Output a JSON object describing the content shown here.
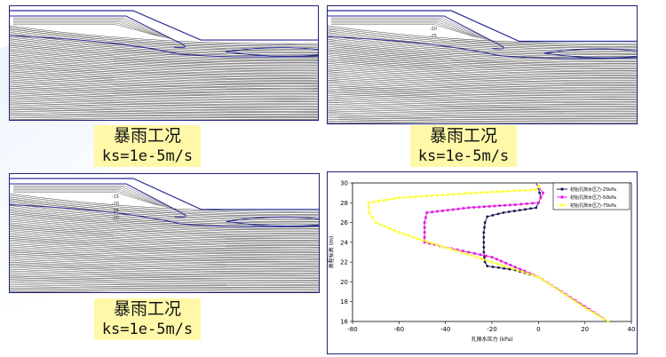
{
  "colors": {
    "boundary": "#2a2a9a",
    "contour": "#222222",
    "caption_bg": "#fff8a8",
    "series_25": "#141450",
    "series_50": "#e020e0",
    "series_75": "#ffff33"
  },
  "panels": [
    {
      "caption": "暴雨工况",
      "ks": "ks=1e-5m/s",
      "labels": []
    },
    {
      "caption": "暴雨工况",
      "ks": "ks=1e-5m/s",
      "labels": [
        "-20",
        "-25"
      ]
    },
    {
      "caption": "暴雨工况",
      "ks": "ks=1e-5m/s",
      "labels": [
        "-15",
        "-20",
        "-25",
        "-30"
      ]
    }
  ],
  "chart_data": {
    "type": "line",
    "xlabel": "孔隙水压力 (kPa)",
    "ylabel": "高程标高 (m)",
    "xlim": [
      -80,
      40
    ],
    "ylim": [
      16,
      30
    ],
    "xticks": [
      -80,
      -60,
      -40,
      -20,
      0,
      20,
      40
    ],
    "yticks": [
      16,
      18,
      20,
      22,
      24,
      26,
      28,
      30
    ],
    "grid": false,
    "legend": "top-right",
    "series": [
      {
        "name": "初始孔隙水压力-25kPa",
        "color": "#141450",
        "points": [
          [
            30,
            16
          ],
          [
            20,
            17.5
          ],
          [
            10,
            19
          ],
          [
            0,
            20.5
          ],
          [
            -10,
            21.2
          ],
          [
            -22,
            21.6
          ],
          [
            -23,
            22
          ],
          [
            -23.5,
            23
          ],
          [
            -23.5,
            24
          ],
          [
            -23.5,
            25
          ],
          [
            -23,
            26
          ],
          [
            -22,
            26.6
          ],
          [
            -15,
            27
          ],
          [
            -1,
            27.5
          ],
          [
            1,
            28.5
          ],
          [
            0,
            29.5
          ],
          [
            -1,
            30
          ]
        ]
      },
      {
        "name": "初始孔隙水压力-50kPa",
        "color": "#e020e0",
        "points": [
          [
            30,
            16
          ],
          [
            20,
            17.5
          ],
          [
            10,
            19
          ],
          [
            0,
            20.5
          ],
          [
            -10,
            21.5
          ],
          [
            -20,
            22.5
          ],
          [
            -30,
            23
          ],
          [
            -40,
            23.5
          ],
          [
            -49,
            24
          ],
          [
            -49,
            25
          ],
          [
            -49,
            26
          ],
          [
            -48,
            27
          ],
          [
            -30,
            27.5
          ],
          [
            -10,
            27.8
          ],
          [
            0,
            28
          ],
          [
            2,
            29
          ],
          [
            0,
            29.6
          ],
          [
            -1,
            30
          ]
        ]
      },
      {
        "name": "初始孔隙水压力-75kPa",
        "color": "#ffff33",
        "points": [
          [
            30,
            16
          ],
          [
            20,
            17.4
          ],
          [
            0,
            20.5
          ],
          [
            -20,
            22
          ],
          [
            -40,
            23.5
          ],
          [
            -50,
            24.2
          ],
          [
            -60,
            25
          ],
          [
            -70,
            26
          ],
          [
            -73,
            27
          ],
          [
            -73,
            28
          ],
          [
            -60,
            28.5
          ],
          [
            -27,
            29
          ],
          [
            -1,
            29.3
          ],
          [
            0,
            29.6
          ],
          [
            0,
            30
          ]
        ]
      }
    ]
  }
}
